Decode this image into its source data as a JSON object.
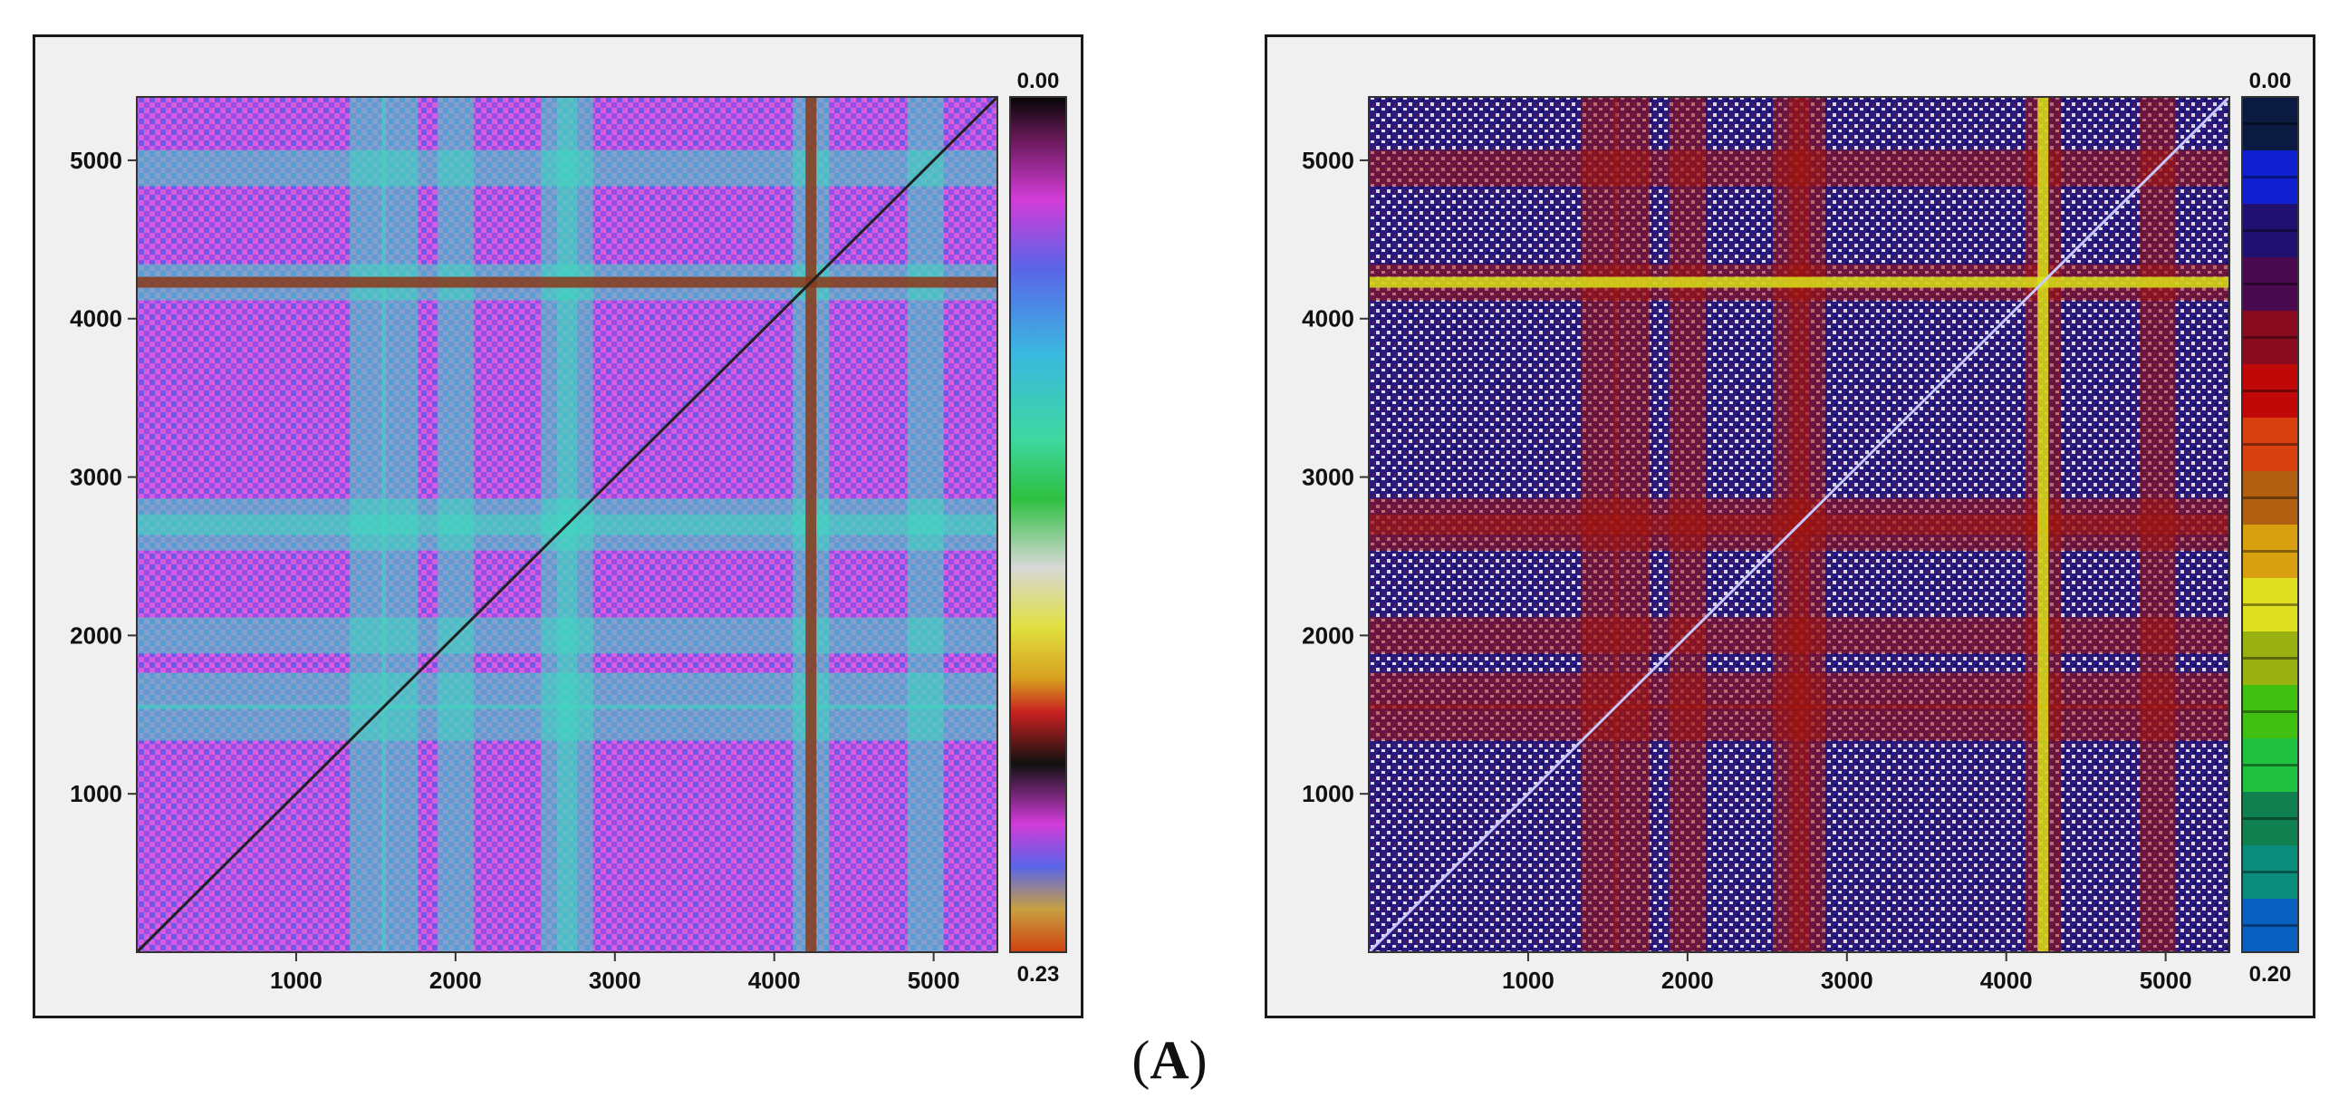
{
  "caption": {
    "open": "(",
    "letter": "A",
    "close": ")"
  },
  "chart_data": [
    {
      "type": "heatmap",
      "name": "distance-matrix-continuous",
      "title": "",
      "xlabel": "",
      "ylabel": "",
      "xlim": [
        0,
        5400
      ],
      "ylim": [
        0,
        5400
      ],
      "x_ticks": [
        1000,
        2000,
        3000,
        4000,
        5000
      ],
      "y_ticks": [
        1000,
        2000,
        3000,
        4000,
        5000
      ],
      "colorbar": {
        "min_label": "0.00",
        "max_label": "0.23",
        "min": 0.0,
        "max": 0.23,
        "style": "continuous"
      },
      "background_color": "#d55cde",
      "stripe_positions": [
        1450,
        1650,
        2000,
        2650,
        2750,
        4230,
        4950
      ],
      "diagonal": true
    },
    {
      "type": "heatmap",
      "name": "distance-matrix-discrete",
      "title": "",
      "xlabel": "",
      "ylabel": "",
      "xlim": [
        0,
        5400
      ],
      "ylim": [
        0,
        5400
      ],
      "x_ticks": [
        1000,
        2000,
        3000,
        4000,
        5000
      ],
      "y_ticks": [
        1000,
        2000,
        3000,
        4000,
        5000
      ],
      "colorbar": {
        "min_label": "0.00",
        "max_label": "0.20",
        "min": 0.0,
        "max": 0.2,
        "style": "discrete"
      },
      "background_color": "#2a1a80",
      "stripe_positions": [
        1450,
        1650,
        2000,
        2650,
        2750,
        4230,
        4950
      ],
      "diagonal": true
    }
  ],
  "colors": {
    "panel_bg": "#f0f0f0",
    "axis": "#333333"
  }
}
